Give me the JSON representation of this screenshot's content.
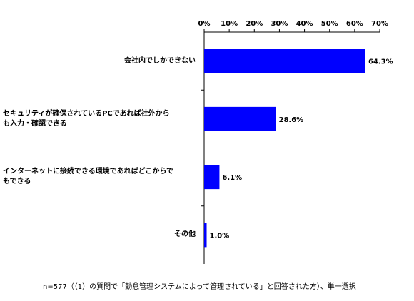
{
  "chart_data": {
    "type": "bar",
    "orientation": "horizontal",
    "categories": [
      [
        "会社内でしかできない"
      ],
      [
        "セキュリティが確保されているPCであれば社外から",
        "も入力・確認できる"
      ],
      [
        "インターネットに接続できる環境であればどこからで",
        "もできる"
      ],
      [
        "その他"
      ]
    ],
    "values": [
      64.3,
      28.6,
      6.1,
      1.0
    ],
    "data_labels": [
      "64.3%",
      "28.6%",
      "6.1%",
      "1.0%"
    ],
    "xlim": [
      0,
      70
    ],
    "ticks": [
      0,
      10,
      20,
      30,
      40,
      50,
      60,
      70
    ],
    "tick_labels": [
      "0%",
      "10%",
      "20%",
      "30%",
      "40%",
      "50%",
      "60%",
      "70%"
    ],
    "bar_color": "#0000ff",
    "axis_position": "top",
    "grid": false,
    "legend": "none"
  },
  "footnote": "n=577（（1）の質問で「勤怠管理システムによって管理されている」と回答された方）、単一選択"
}
